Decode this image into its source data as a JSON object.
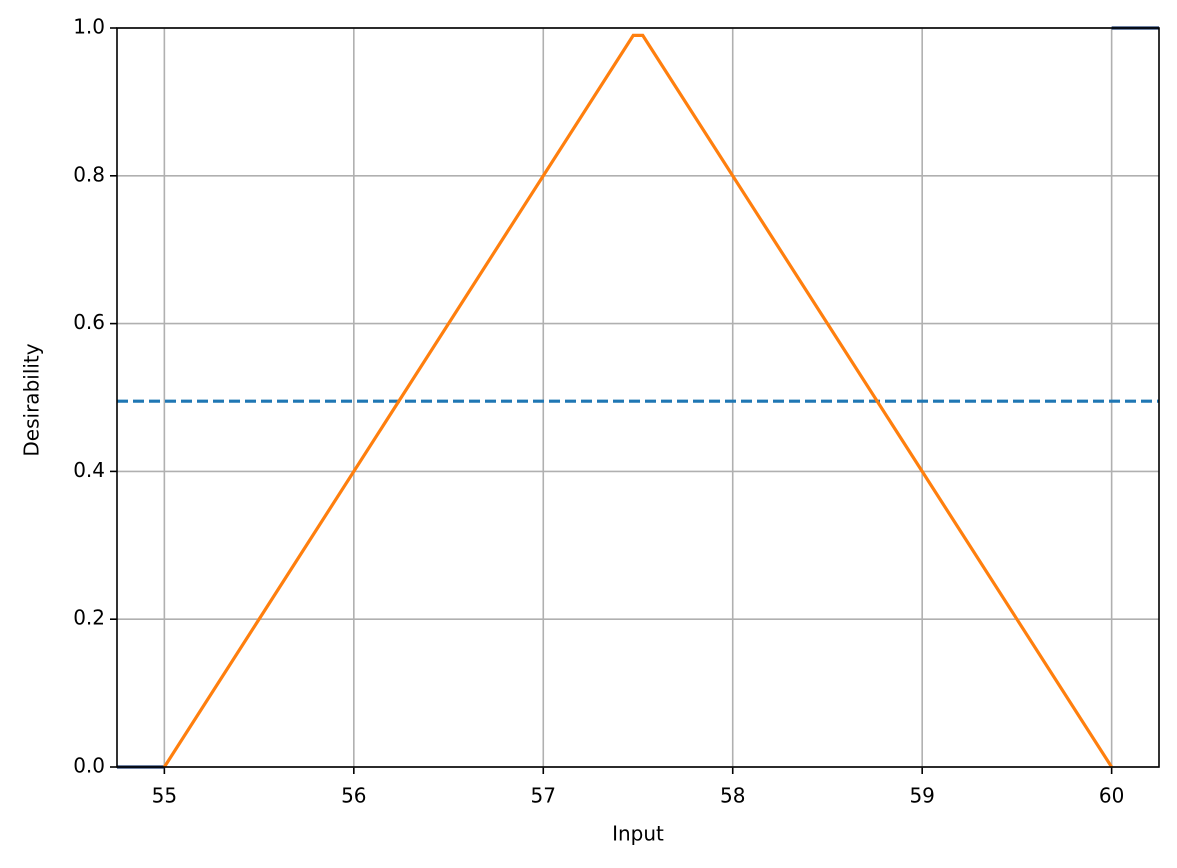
{
  "chart_data": {
    "type": "line",
    "xlabel": "Input",
    "ylabel": "Desirability",
    "xlim": [
      54.75,
      60.25
    ],
    "ylim": [
      0,
      1
    ],
    "xticks": [
      55,
      56,
      57,
      58,
      59,
      60
    ],
    "yticks": [
      {
        "value": 0,
        "label": "0.0"
      },
      0.2,
      0.4,
      0.6,
      0.8,
      {
        "value": 1,
        "label": "1.0"
      }
    ],
    "grid": true,
    "series": [
      {
        "color": "#1f3b6e",
        "dashed": false,
        "x": [
          54.75,
          55,
          57.5,
          60,
          60.25
        ],
        "values": [
          0,
          0,
          null,
          1,
          1
        ]
      },
      {
        "color": "#1f77b4",
        "dashed": true,
        "x": [
          54.75,
          60.25
        ],
        "values": [
          0.495,
          0.495
        ]
      },
      {
        "color": "#ff7f0e",
        "dashed": false,
        "x": [
          55,
          57.475,
          57.525,
          60
        ],
        "values": [
          0,
          0.99,
          0.99,
          0
        ]
      }
    ]
  }
}
